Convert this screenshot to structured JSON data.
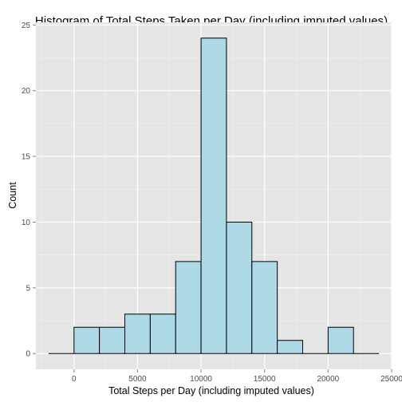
{
  "chart_data": {
    "type": "bar",
    "title": "Histogram of Total Steps Taken per Day (including imputed values)",
    "xlabel": "Total Steps per Day (including imputed values)",
    "ylabel": "Count",
    "bin_width": 2000,
    "bins": [
      {
        "start": -2000,
        "end": 0,
        "count": 0
      },
      {
        "start": 0,
        "end": 2000,
        "count": 2
      },
      {
        "start": 2000,
        "end": 4000,
        "count": 2
      },
      {
        "start": 4000,
        "end": 6000,
        "count": 3
      },
      {
        "start": 6000,
        "end": 8000,
        "count": 3
      },
      {
        "start": 8000,
        "end": 10000,
        "count": 7
      },
      {
        "start": 10000,
        "end": 12000,
        "count": 24
      },
      {
        "start": 12000,
        "end": 14000,
        "count": 10
      },
      {
        "start": 14000,
        "end": 16000,
        "count": 7
      },
      {
        "start": 16000,
        "end": 18000,
        "count": 1
      },
      {
        "start": 18000,
        "end": 20000,
        "count": 0
      },
      {
        "start": 20000,
        "end": 22000,
        "count": 2
      },
      {
        "start": 22000,
        "end": 24000,
        "count": 0
      }
    ],
    "xlim": [
      -3000,
      25000
    ],
    "ylim": [
      -1.2,
      25.2
    ],
    "x_ticks": [
      0,
      5000,
      10000,
      15000,
      20000,
      25000
    ],
    "y_ticks": [
      0,
      5,
      10,
      15,
      20,
      25
    ],
    "x_tick_labels": [
      "0",
      "5000",
      "10000",
      "15000",
      "20000",
      "25000"
    ],
    "y_tick_labels": [
      "0",
      "5",
      "10",
      "15",
      "20",
      "25"
    ],
    "grid": true,
    "colors": {
      "panel_background": "#e5e5e5",
      "grid_major": "#ffffff",
      "grid_minor": "#f2f2f2",
      "bar_fill": "#add8e6",
      "bar_stroke": "#000000",
      "tick_text": "#4d4d4d",
      "text": "#000000"
    }
  }
}
